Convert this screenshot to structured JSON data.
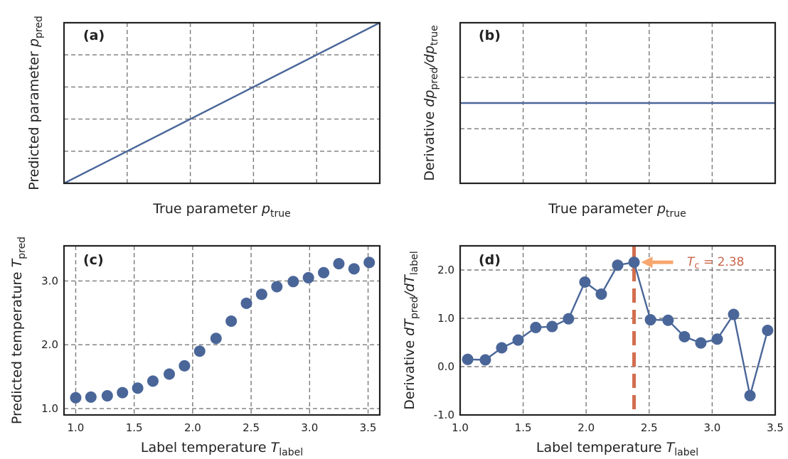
{
  "chart_data": [
    {
      "panel": "(a)",
      "type": "line",
      "xlabel": "True parameter",
      "xlabel_symbol": "p",
      "xlabel_sub": "true",
      "ylabel": "Predicted parameter",
      "ylabel_symbol": "p",
      "ylabel_sub": "pred",
      "x": [
        0,
        1
      ],
      "y": [
        0,
        1
      ],
      "xlim": [
        0,
        1
      ],
      "ylim": [
        0,
        1
      ],
      "grid": true,
      "tick_labels_visible": false
    },
    {
      "panel": "(b)",
      "type": "line",
      "xlabel": "True parameter",
      "xlabel_symbol": "p",
      "xlabel_sub": "true",
      "ylabel": "Derivative",
      "ylabel_symbol": "dp",
      "ylabel_sub": "pred",
      "ylabel_symbol2": "/dp",
      "ylabel_sub2": "true",
      "x": [
        0,
        1
      ],
      "y": [
        1,
        1
      ],
      "xlim": [
        0,
        1
      ],
      "ylim": [
        0,
        2
      ],
      "grid": true,
      "tick_labels_visible": false
    },
    {
      "panel": "(c)",
      "type": "scatter",
      "xlabel": "Label temperature",
      "xlabel_symbol": "T",
      "xlabel_sub": "label",
      "ylabel": "Predicted temperature",
      "ylabel_symbol": "T",
      "ylabel_sub": "pred",
      "x": [
        1.0,
        1.13,
        1.27,
        1.4,
        1.53,
        1.66,
        1.8,
        1.93,
        2.06,
        2.2,
        2.33,
        2.46,
        2.59,
        2.72,
        2.86,
        2.99,
        3.12,
        3.25,
        3.38,
        3.51
      ],
      "y": [
        1.17,
        1.18,
        1.2,
        1.25,
        1.32,
        1.43,
        1.54,
        1.67,
        1.9,
        2.1,
        2.37,
        2.65,
        2.79,
        2.91,
        2.99,
        3.05,
        3.13,
        3.27,
        3.19,
        3.29
      ],
      "xlim": [
        0.9,
        3.6
      ],
      "ylim": [
        0.9,
        3.55
      ],
      "xticks": [
        1.0,
        1.5,
        2.0,
        2.5,
        3.0,
        3.5
      ],
      "xtick_labels": [
        "1.0",
        "1.5",
        "2.0",
        "2.5",
        "3.0",
        "3.5"
      ],
      "yticks": [
        1.0,
        2.0,
        3.0
      ],
      "ytick_labels": [
        "1.0",
        "2.0",
        "3.0"
      ],
      "grid": true
    },
    {
      "panel": "(d)",
      "type": "line",
      "xlabel": "Label temperature",
      "xlabel_symbol": "T",
      "xlabel_sub": "label",
      "ylabel": "Derivative",
      "ylabel_symbol": "dT",
      "ylabel_sub": "pred",
      "ylabel_symbol2": "/dT",
      "ylabel_sub2": "label",
      "x": [
        1.06,
        1.2,
        1.33,
        1.46,
        1.6,
        1.73,
        1.86,
        1.99,
        2.12,
        2.25,
        2.38,
        2.51,
        2.65,
        2.78,
        2.91,
        3.04,
        3.17,
        3.3,
        3.44
      ],
      "y": [
        0.15,
        0.14,
        0.39,
        0.55,
        0.81,
        0.83,
        0.99,
        1.75,
        1.5,
        2.1,
        2.16,
        0.97,
        0.96,
        0.62,
        0.49,
        0.57,
        1.08,
        -0.6,
        0.75
      ],
      "xlim": [
        1.0,
        3.5
      ],
      "ylim": [
        -1.0,
        2.5
      ],
      "xticks": [
        1.0,
        1.5,
        2.0,
        2.5,
        3.0,
        3.5
      ],
      "xtick_labels": [
        "1.0",
        "1.5",
        "2.0",
        "2.5",
        "3.0",
        "3.5"
      ],
      "yticks": [
        -1.0,
        0.0,
        1.0,
        2.0
      ],
      "ytick_labels": [
        "-1.0",
        "0.0",
        "1.0",
        "2.0"
      ],
      "vline": 2.38,
      "annotation_symbol": "T",
      "annotation_sub": "c",
      "annotation_value": " = 2.38",
      "grid": true
    }
  ],
  "colors": {
    "series": "#4a6699",
    "critical_line": "#d26e4e",
    "arrow": "#f6a66e",
    "annotation_text": "#c8654a",
    "grid": "#7a7a7a"
  }
}
